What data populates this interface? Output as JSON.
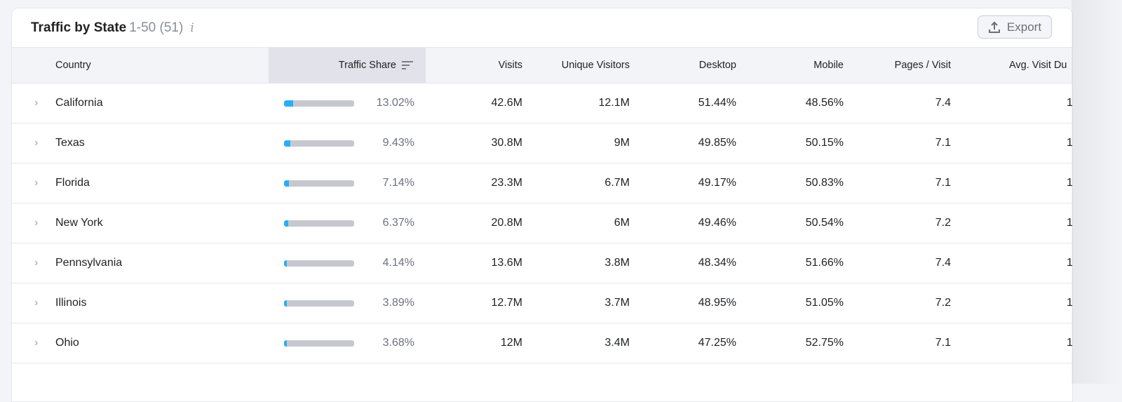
{
  "header": {
    "title": "Traffic by State",
    "range": "1-50 (51)",
    "info_icon": "info-icon",
    "export_label": "Export",
    "export_icon": "upload-icon"
  },
  "columns": [
    "Country",
    "Traffic Share",
    "Visits",
    "Unique Visitors",
    "Desktop",
    "Mobile",
    "Pages / Visit",
    "Avg. Visit Du"
  ],
  "sorted_column": "Traffic Share",
  "colors": {
    "accent": "#2aaef5",
    "bar_track": "#c5c8cf"
  },
  "rows": [
    {
      "country": "California",
      "share": "13.02%",
      "share_value": 13.02,
      "visits": "42.6M",
      "unique": "12.1M",
      "desktop": "51.44%",
      "mobile": "48.56%",
      "pages": "7.4",
      "avg": "1"
    },
    {
      "country": "Texas",
      "share": "9.43%",
      "share_value": 9.43,
      "visits": "30.8M",
      "unique": "9M",
      "desktop": "49.85%",
      "mobile": "50.15%",
      "pages": "7.1",
      "avg": "1"
    },
    {
      "country": "Florida",
      "share": "7.14%",
      "share_value": 7.14,
      "visits": "23.3M",
      "unique": "6.7M",
      "desktop": "49.17%",
      "mobile": "50.83%",
      "pages": "7.1",
      "avg": "1"
    },
    {
      "country": "New York",
      "share": "6.37%",
      "share_value": 6.37,
      "visits": "20.8M",
      "unique": "6M",
      "desktop": "49.46%",
      "mobile": "50.54%",
      "pages": "7.2",
      "avg": "1"
    },
    {
      "country": "Pennsylvania",
      "share": "4.14%",
      "share_value": 4.14,
      "visits": "13.6M",
      "unique": "3.8M",
      "desktop": "48.34%",
      "mobile": "51.66%",
      "pages": "7.4",
      "avg": "1"
    },
    {
      "country": "Illinois",
      "share": "3.89%",
      "share_value": 3.89,
      "visits": "12.7M",
      "unique": "3.7M",
      "desktop": "48.95%",
      "mobile": "51.05%",
      "pages": "7.2",
      "avg": "1"
    },
    {
      "country": "Ohio",
      "share": "3.68%",
      "share_value": 3.68,
      "visits": "12M",
      "unique": "3.4M",
      "desktop": "47.25%",
      "mobile": "52.75%",
      "pages": "7.1",
      "avg": "1"
    }
  ]
}
